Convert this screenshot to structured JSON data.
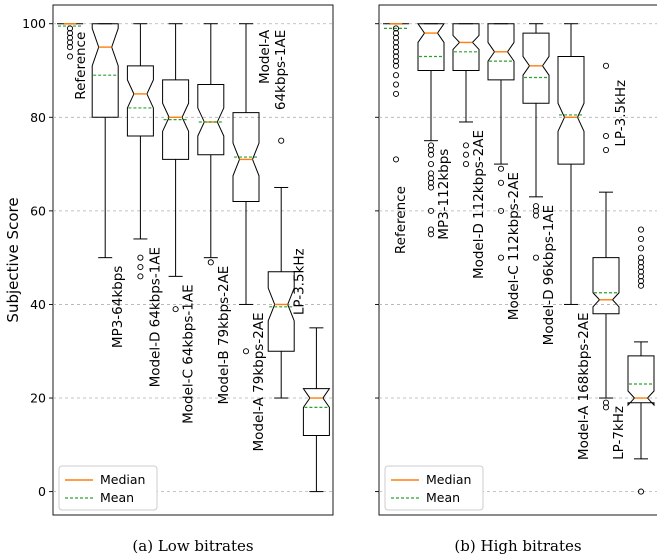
{
  "chart_data": [
    {
      "type": "box",
      "panel": "a",
      "caption": "(a) Low bitrates",
      "ylabel": "Subjective Score",
      "ylim": [
        -5,
        104
      ],
      "yticks": [
        0,
        20,
        40,
        60,
        80,
        100
      ],
      "grid": true,
      "legend_position": "bottom-left",
      "legend": {
        "median": "Median",
        "mean": "Mean"
      },
      "median_color": "#ff7f0e",
      "mean_color": "#2ca02c",
      "categories": [
        "Reference",
        "MP3-64kbps",
        "Model-D 64kbps-1AE",
        "Model-C 64kbps-1AE",
        "Model-B 79kbps-2AE",
        "Model-A 79kbps-2AE",
        "Model-A 64kbps-1AE",
        "LP-3.5kHz"
      ],
      "boxes": [
        {
          "category": "Reference",
          "whisker_low": 100,
          "q1": 100,
          "median": 100,
          "q3": 100,
          "whisker_high": 100,
          "mean": 99.5,
          "notch": [
            100,
            100
          ],
          "outliers": [
            99,
            98,
            97,
            96,
            95,
            93
          ]
        },
        {
          "category": "MP3-64kbps",
          "whisker_low": 50,
          "q1": 80,
          "median": 95,
          "q3": 100,
          "whisker_high": 100,
          "mean": 89,
          "notch": [
            91,
            99
          ],
          "outliers": []
        },
        {
          "category": "Model-D 64kbps-1AE",
          "whisker_low": 54,
          "q1": 76,
          "median": 85,
          "q3": 91,
          "whisker_high": 100,
          "mean": 82,
          "notch": [
            82,
            88
          ],
          "outliers": [
            50,
            48,
            46
          ]
        },
        {
          "category": "Model-C 64kbps-1AE",
          "whisker_low": 46,
          "q1": 71,
          "median": 80,
          "q3": 88,
          "whisker_high": 100,
          "mean": 79.5,
          "notch": [
            77,
            83
          ],
          "outliers": [
            39
          ]
        },
        {
          "category": "Model-B 79kbps-2AE",
          "whisker_low": 50,
          "q1": 72,
          "median": 79,
          "q3": 87,
          "whisker_high": 100,
          "mean": 79,
          "notch": [
            76,
            82
          ],
          "outliers": [
            49
          ]
        },
        {
          "category": "Model-A 79kbps-2AE",
          "whisker_low": 40,
          "q1": 62,
          "median": 71,
          "q3": 81,
          "whisker_high": 100,
          "mean": 71.5,
          "notch": [
            67.5,
            74.5
          ],
          "outliers": [
            30
          ]
        },
        {
          "category": "Model-A 64kbps-1AE",
          "whisker_low": 20,
          "q1": 30,
          "median": 40,
          "q3": 47,
          "whisker_high": 65,
          "mean": 39.5,
          "notch": [
            36.5,
            43.5
          ],
          "outliers": [
            75
          ]
        },
        {
          "category": "LP-3.5kHz",
          "whisker_low": 0,
          "q1": 12,
          "median": 20,
          "q3": 22,
          "whisker_high": 35,
          "mean": 18,
          "notch": [
            18,
            22
          ],
          "outliers": []
        }
      ]
    },
    {
      "type": "box",
      "panel": "b",
      "caption": "(b) High bitrates",
      "ylabel": "",
      "ylim": [
        -5,
        104
      ],
      "yticks": [
        0,
        20,
        40,
        60,
        80,
        100
      ],
      "grid": true,
      "legend_position": "bottom-left",
      "legend": {
        "median": "Median",
        "mean": "Mean"
      },
      "median_color": "#ff7f0e",
      "mean_color": "#2ca02c",
      "categories": [
        "Reference",
        "MP3-112kbps",
        "Model-D 112kbps-2AE",
        "Model-C 112kbps-2AE",
        "Model-D 96kbps-1AE",
        "Model-A 168kbps-2AE",
        "LP-7kHz",
        "LP-3.5kHz"
      ],
      "boxes": [
        {
          "category": "Reference",
          "whisker_low": 100,
          "q1": 100,
          "median": 100,
          "q3": 100,
          "whisker_high": 100,
          "mean": 99,
          "notch": [
            100,
            100
          ],
          "outliers": [
            99,
            98,
            97,
            96,
            95,
            94,
            93,
            92,
            91,
            89,
            87,
            85,
            71
          ]
        },
        {
          "category": "MP3-112kbps",
          "whisker_low": 75,
          "q1": 90,
          "median": 98,
          "q3": 100,
          "whisker_high": 100,
          "mean": 93,
          "notch": [
            96,
            100
          ],
          "outliers": [
            74,
            73,
            72,
            70,
            68,
            67,
            66,
            65,
            60,
            56,
            55
          ]
        },
        {
          "category": "Model-D 112kbps-2AE",
          "whisker_low": 79,
          "q1": 90,
          "median": 96,
          "q3": 100,
          "whisker_high": 100,
          "mean": 94,
          "notch": [
            94.5,
            97.5
          ],
          "outliers": [
            74,
            72,
            70
          ]
        },
        {
          "category": "Model-C 112kbps-2AE",
          "whisker_low": 70,
          "q1": 88,
          "median": 94,
          "q3": 100,
          "whisker_high": 100,
          "mean": 92,
          "notch": [
            92,
            96
          ],
          "outliers": [
            69,
            66,
            60,
            50
          ]
        },
        {
          "category": "Model-D 96kbps-1AE",
          "whisker_low": 63,
          "q1": 83,
          "median": 91,
          "q3": 98,
          "whisker_high": 100,
          "mean": 88.5,
          "notch": [
            89,
            93
          ],
          "outliers": [
            61,
            60,
            59,
            50
          ]
        },
        {
          "category": "Model-A 168kbps-2AE",
          "whisker_low": 40,
          "q1": 70,
          "median": 80,
          "q3": 93,
          "whisker_high": 100,
          "mean": 80.5,
          "notch": [
            77,
            83
          ],
          "outliers": []
        },
        {
          "category": "LP-7kHz",
          "whisker_low": 20,
          "q1": 38,
          "median": 41,
          "q3": 50,
          "whisker_high": 64,
          "mean": 42.5,
          "notch": [
            39.5,
            42.5
          ],
          "outliers": [
            91,
            76,
            73,
            19,
            18
          ]
        },
        {
          "category": "LP-3.5kHz",
          "whisker_low": 7,
          "q1": 19,
          "median": 20,
          "q3": 29,
          "whisker_high": 32,
          "mean": 23,
          "notch": [
            18.5,
            21.5
          ],
          "outliers": [
            56,
            54,
            52,
            50,
            49,
            48,
            47,
            46,
            45,
            44,
            0
          ]
        }
      ]
    }
  ]
}
